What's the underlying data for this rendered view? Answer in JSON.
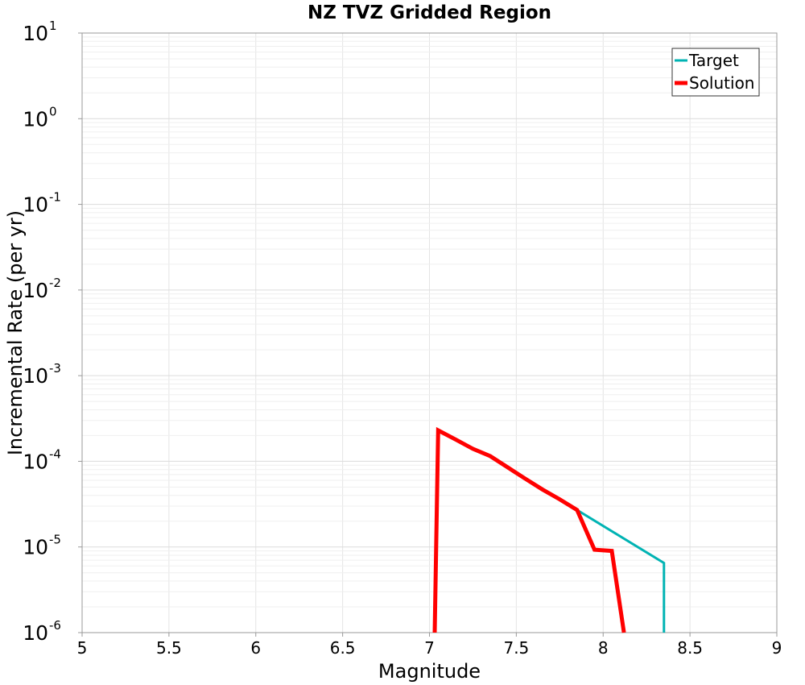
{
  "chart_data": {
    "type": "line",
    "title": "NZ TVZ Gridded Region",
    "xlabel": "Magnitude",
    "ylabel": "Incremental Rate (per yr)",
    "xlim": [
      5,
      9
    ],
    "ylim": [
      1e-06,
      10
    ],
    "yscale": "log",
    "grid": true,
    "legend_position": "top-right",
    "xticks": [
      "5",
      "5.5",
      "6",
      "6.5",
      "7",
      "7.5",
      "8",
      "8.5",
      "9"
    ],
    "xtick_values": [
      5,
      5.5,
      6,
      6.5,
      7,
      7.5,
      8,
      8.5,
      9
    ],
    "yticks": [
      {
        "value": 1e-06,
        "base": "10",
        "exp": "-6"
      },
      {
        "value": 1e-05,
        "base": "10",
        "exp": "-5"
      },
      {
        "value": 0.0001,
        "base": "10",
        "exp": "-4"
      },
      {
        "value": 0.001,
        "base": "10",
        "exp": "-3"
      },
      {
        "value": 0.01,
        "base": "10",
        "exp": "-2"
      },
      {
        "value": 0.1,
        "base": "10",
        "exp": "-1"
      },
      {
        "value": 1,
        "base": "10",
        "exp": "0"
      },
      {
        "value": 10,
        "base": "10",
        "exp": "1"
      }
    ],
    "series": [
      {
        "name": "Target",
        "color": "#00b3b3",
        "x": [
          7.85,
          8.35,
          8.35
        ],
        "y": [
          2.7e-05,
          6.5e-06,
          1e-06
        ]
      },
      {
        "name": "Solution",
        "color": "#ff0000",
        "x": [
          7.03,
          7.05,
          7.15,
          7.25,
          7.35,
          7.45,
          7.55,
          7.65,
          7.75,
          7.85,
          7.95,
          8.05,
          8.12
        ],
        "y": [
          1e-06,
          0.00023,
          0.00018,
          0.00014,
          0.000115,
          8.5e-05,
          6.3e-05,
          4.7e-05,
          3.6e-05,
          2.7e-05,
          9.3e-06,
          9e-06,
          1e-06
        ]
      }
    ]
  }
}
